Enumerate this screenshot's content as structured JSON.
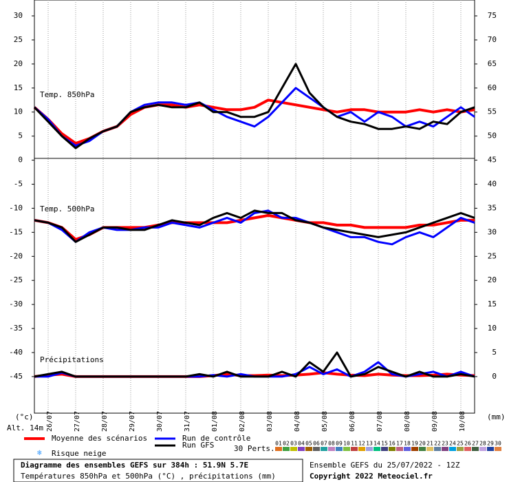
{
  "chart_data": {
    "type": "line",
    "x": [
      0,
      12,
      24,
      36,
      48,
      60,
      72,
      84,
      96,
      108,
      120,
      132,
      144,
      156,
      168,
      180,
      192,
      204,
      216,
      228,
      240,
      252,
      264,
      276,
      288,
      300,
      312,
      324,
      336,
      348,
      360,
      372,
      384
    ],
    "xlim": [
      0,
      384
    ],
    "xticks": [
      {
        "value": 12,
        "label": "26/07"
      },
      {
        "value": 36,
        "label": "27/07"
      },
      {
        "value": 60,
        "label": "28/07"
      },
      {
        "value": 84,
        "label": "29/07"
      },
      {
        "value": 108,
        "label": "30/07"
      },
      {
        "value": 132,
        "label": "31/07"
      },
      {
        "value": 156,
        "label": "01/08"
      },
      {
        "value": 180,
        "label": "02/08"
      },
      {
        "value": 204,
        "label": "03/08"
      },
      {
        "value": 228,
        "label": "04/08"
      },
      {
        "value": 252,
        "label": "05/08"
      },
      {
        "value": 276,
        "label": "06/08"
      },
      {
        "value": 300,
        "label": "07/08"
      },
      {
        "value": 324,
        "label": "08/08"
      },
      {
        "value": 348,
        "label": "09/08"
      },
      {
        "value": 372,
        "label": "10/08"
      }
    ],
    "ylim": [
      -52.6,
      33.3
    ],
    "yticks": [
      30,
      25,
      20,
      15,
      10,
      5,
      0,
      -5,
      -10,
      -15,
      -20,
      -25,
      -30,
      -35,
      -40,
      -45
    ],
    "y2lim": [
      -7.6,
      78.3
    ],
    "y2ticks": [
      75,
      70,
      65,
      60,
      55,
      50,
      45,
      40,
      35,
      30,
      25,
      20,
      15,
      10,
      5,
      0
    ],
    "y_label": "(°c)",
    "y2_label": "(mm)",
    "altitude": "Alt. 14m",
    "annotations": [
      "Temp. 850hPa",
      "Temp. 500hPa",
      "Précipitations"
    ],
    "series": [
      {
        "name": "Moyenne des scénarios",
        "color": "#ff0000",
        "width": 4,
        "values": [
          11,
          8.5,
          5.5,
          3.5,
          4.5,
          6,
          7,
          9.5,
          11,
          11.5,
          11.5,
          11,
          11.5,
          11,
          10.5,
          10.5,
          11,
          12.5,
          12,
          11.5,
          11,
          10.5,
          10,
          10.5,
          10.5,
          10,
          10,
          10,
          10.5,
          10,
          10.5,
          10,
          10.5
        ]
      },
      {
        "name": "Run de contrôle",
        "color": "#0000ff",
        "width": 3,
        "values": [
          11,
          8.5,
          5,
          3,
          4,
          6,
          7,
          10,
          11.5,
          12,
          12,
          11.5,
          12,
          10.5,
          9,
          8,
          7,
          9,
          12,
          15,
          13,
          11,
          9,
          10,
          8,
          10,
          9,
          7,
          8,
          7,
          9,
          11,
          9
        ]
      },
      {
        "name": "Run GFS",
        "color": "#000000",
        "width": 3,
        "values": [
          11,
          8,
          5,
          2.5,
          4.5,
          6,
          7,
          10,
          11,
          11.5,
          11,
          11,
          12,
          10,
          10,
          9,
          9,
          10,
          15,
          20,
          14,
          11,
          9,
          8,
          7.5,
          6.5,
          6.5,
          7,
          6.5,
          8,
          7.5,
          10,
          11
        ]
      },
      {
        "color": "#ff0000",
        "width": 4,
        "values": [
          -12.5,
          -13,
          -14,
          -16.5,
          -15.5,
          -14,
          -14,
          -14,
          -14,
          -13.5,
          -13,
          -13,
          -13,
          -13,
          -13,
          -12.5,
          -12,
          -11.5,
          -12,
          -12.5,
          -13,
          -13,
          -13.5,
          -13.5,
          -14,
          -14,
          -14,
          -14,
          -13.5,
          -13.5,
          -13,
          -12.5,
          -12.5
        ]
      },
      {
        "color": "#0000ff",
        "width": 3,
        "values": [
          -12.5,
          -13,
          -14.5,
          -17,
          -15,
          -14,
          -14.5,
          -14.5,
          -14,
          -14,
          -13,
          -13.5,
          -14,
          -13,
          -12,
          -13,
          -11,
          -10.5,
          -12,
          -12,
          -13,
          -14,
          -15,
          -16,
          -16,
          -17,
          -17.5,
          -16,
          -15,
          -16,
          -14,
          -12,
          -13
        ]
      },
      {
        "color": "#000000",
        "width": 3,
        "values": [
          -12.5,
          -13,
          -14,
          -17,
          -15.5,
          -14,
          -14,
          -14.5,
          -14.5,
          -13.5,
          -12.5,
          -13,
          -13.5,
          -12,
          -11,
          -12,
          -10.5,
          -11,
          -11,
          -12.5,
          -13,
          -14,
          -14.5,
          -15,
          -15.5,
          -16,
          -15.5,
          -15,
          -14,
          -13,
          -12,
          -11,
          -12
        ]
      },
      {
        "color": "#ff0000",
        "width": 4,
        "axis": "y2",
        "values": [
          0,
          0.3,
          0.5,
          0,
          0,
          0,
          0,
          0,
          0,
          0,
          0,
          0,
          0,
          0.2,
          0.5,
          0.2,
          0.2,
          0.3,
          0.2,
          0.3,
          0.5,
          0.8,
          0.5,
          0.3,
          0.2,
          0.5,
          0.3,
          0.2,
          0.2,
          0.3,
          0.5,
          0.3,
          0.2
        ]
      },
      {
        "color": "#0000ff",
        "width": 3,
        "axis": "y2",
        "values": [
          0,
          0,
          0.8,
          0,
          0,
          0,
          0,
          0,
          0,
          0,
          0,
          0,
          0,
          0.3,
          0,
          0.5,
          0,
          0,
          0,
          0.5,
          2,
          0.5,
          1.5,
          0,
          1,
          3,
          0.5,
          0,
          0.5,
          1,
          0,
          1,
          0
        ]
      },
      {
        "color": "#000000",
        "width": 3,
        "axis": "y2",
        "values": [
          0,
          0.5,
          1,
          0,
          0,
          0,
          0,
          0,
          0,
          0,
          0,
          0,
          0.5,
          0,
          1,
          0,
          0,
          0,
          1,
          0,
          3,
          1,
          5,
          0,
          0.5,
          2,
          1,
          0,
          1,
          0,
          0,
          0.5,
          0
        ]
      }
    ],
    "perturbations": {
      "label": "30 Perts.",
      "names": [
        "01",
        "02",
        "03",
        "04",
        "05",
        "06",
        "07",
        "08",
        "09",
        "10",
        "11",
        "12",
        "13",
        "14",
        "15",
        "16",
        "17",
        "18",
        "19",
        "20",
        "21",
        "22",
        "23",
        "24",
        "25",
        "26",
        "27",
        "28",
        "29",
        "30"
      ],
      "colors": [
        "#e07020",
        "#40a040",
        "#c0c000",
        "#8040c0",
        "#a06000",
        "#606060",
        "#20a0a0",
        "#c080c0",
        "#4080c0",
        "#80c040",
        "#c04040",
        "#e0a000",
        "#a0a0e0",
        "#00c080",
        "#404080",
        "#808000",
        "#c06080",
        "#6060e0",
        "#a04000",
        "#408040",
        "#e0c060",
        "#6080a0",
        "#804080",
        "#00a0e0",
        "#a0a040",
        "#e06060",
        "#406040",
        "#c0a0e0",
        "#2040a0",
        "#e08040"
      ]
    },
    "snow_label": "Risque neige",
    "title": "Diagramme des ensembles GEFS sur 384h : 51.9N 5.7E",
    "subtitle": "Températures 850hPa et 500hPa (°C) , précipitations (mm)",
    "run_info": "Ensemble GEFS du 25/07/2022 - 12Z",
    "copyright": "Copyright 2022 Meteociel.fr"
  }
}
